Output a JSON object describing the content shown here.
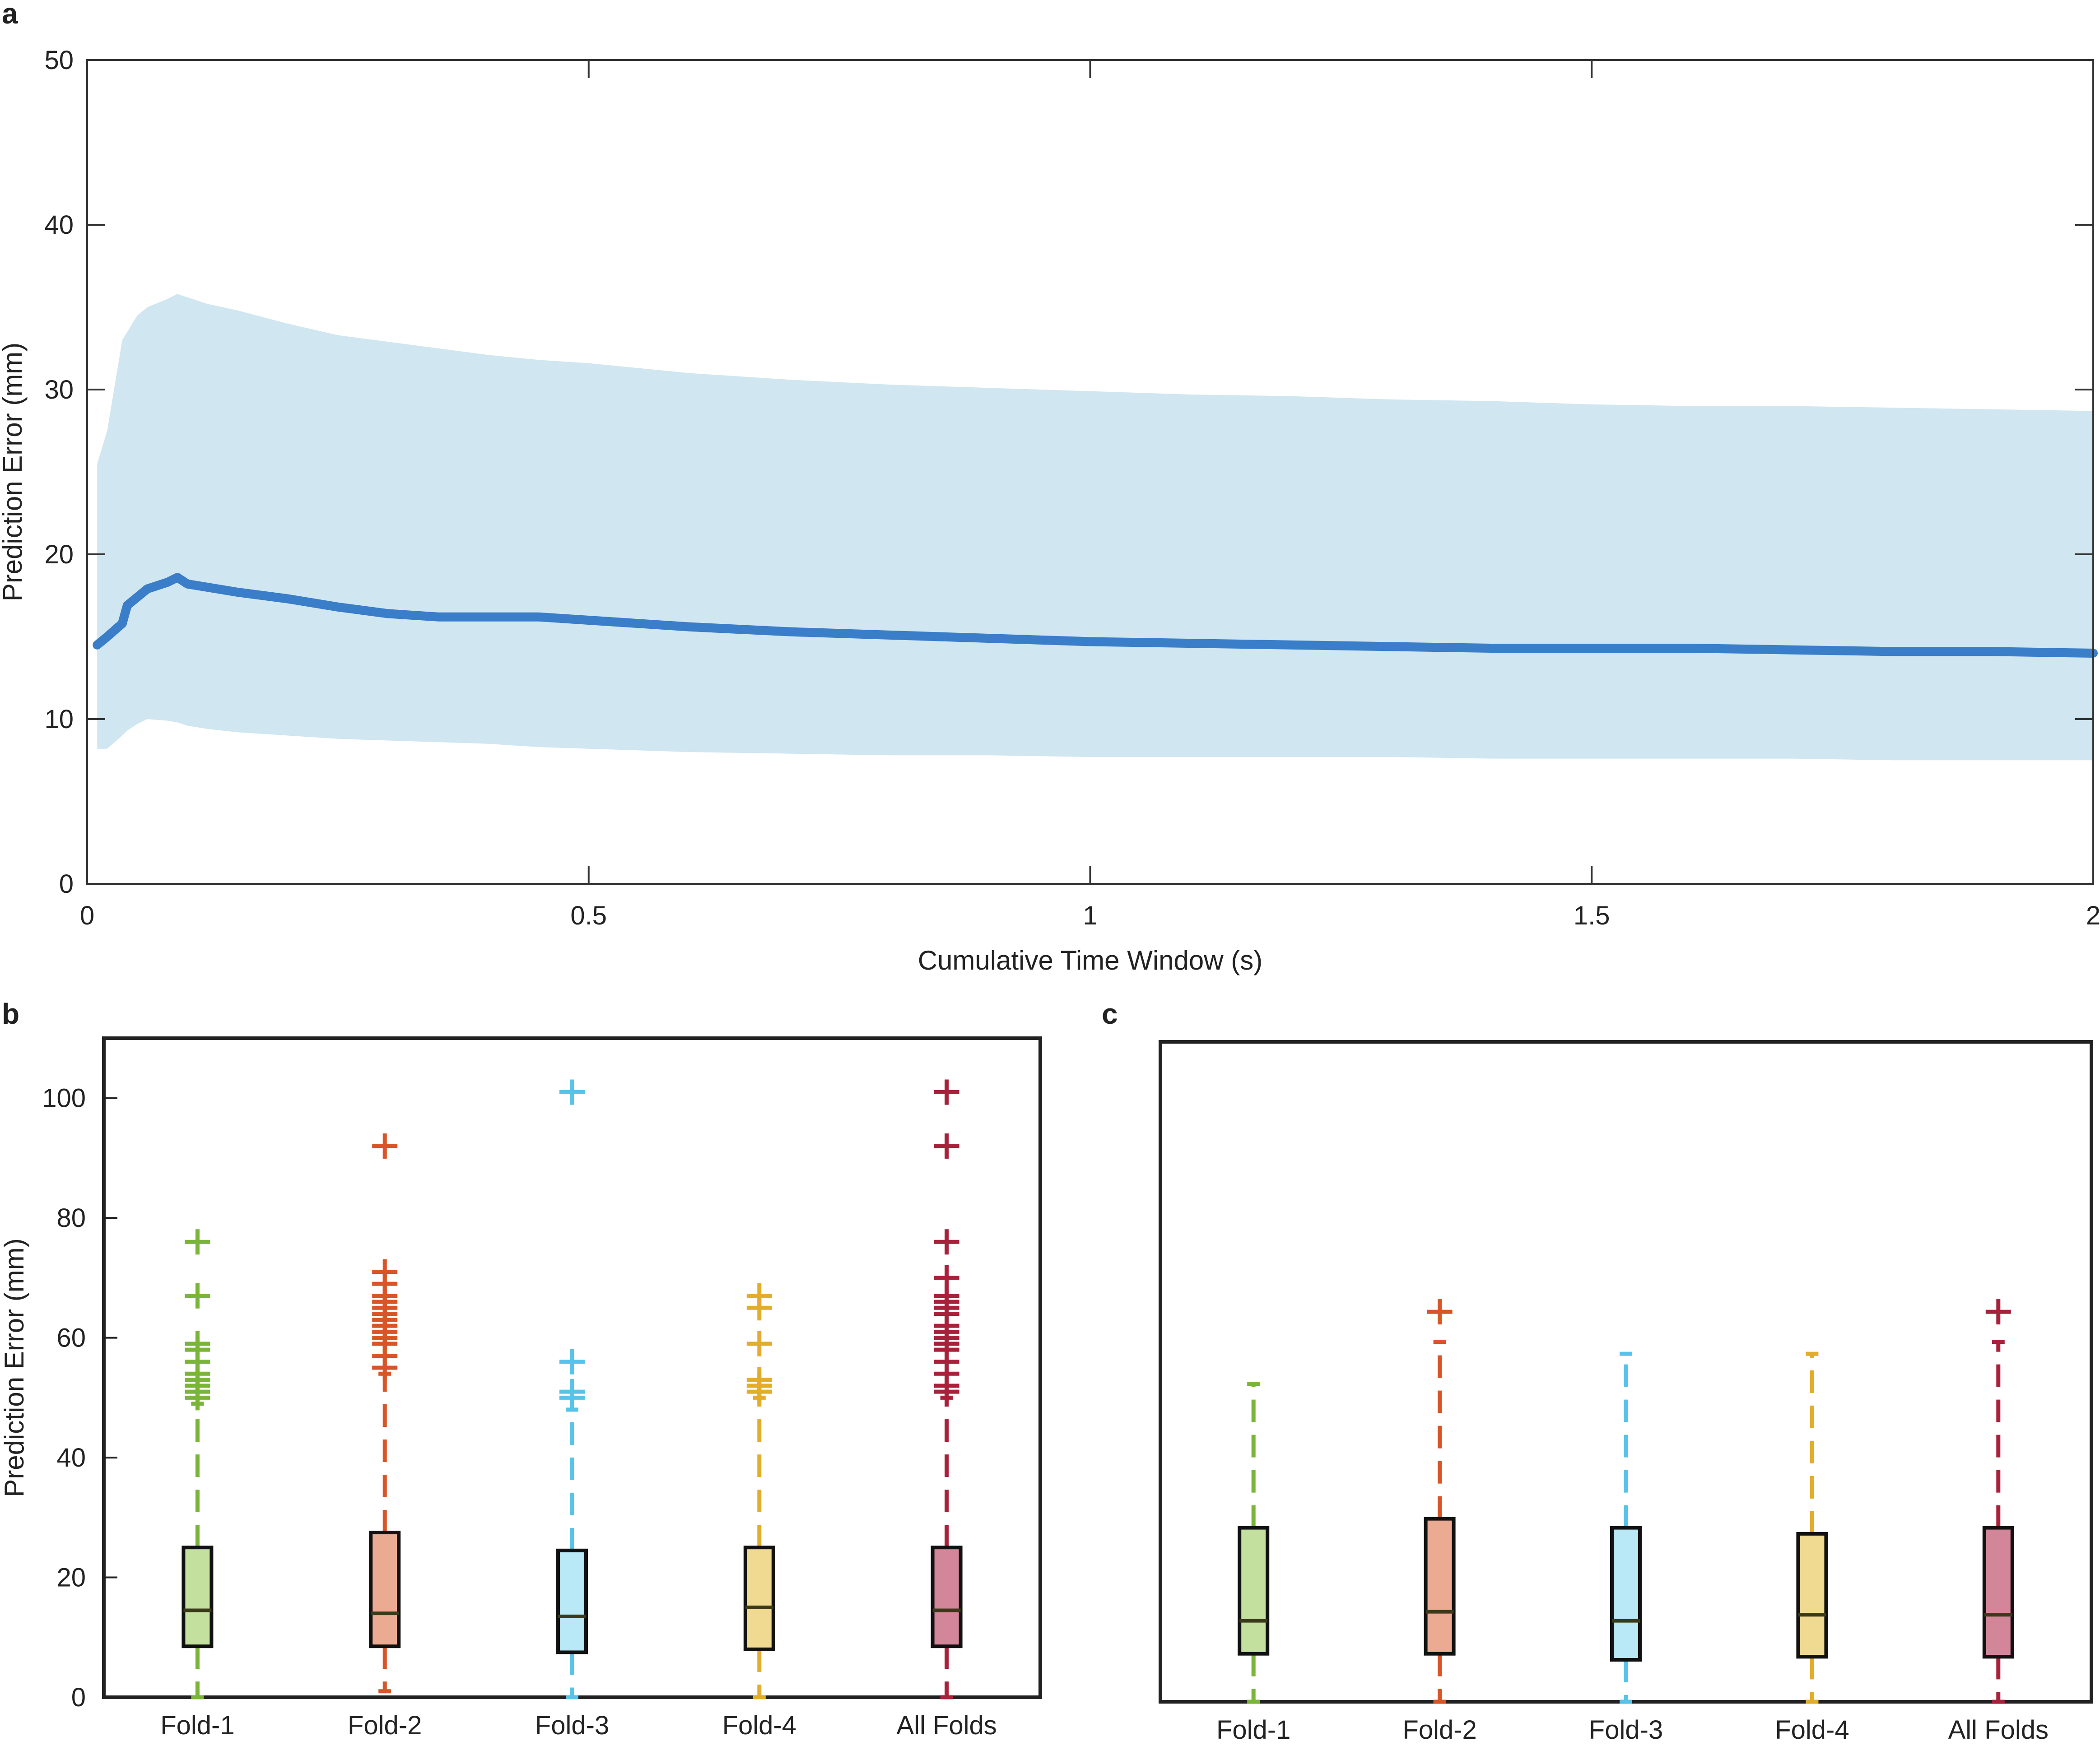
{
  "chart_data": [
    {
      "panel": "a",
      "type": "area",
      "xlabel": "Cumulative Time Window (s)",
      "ylabel": "Prediction Error (mm)",
      "xlim": [
        0,
        2
      ],
      "ylim": [
        0,
        50
      ],
      "xticks": [
        "0",
        "0.5",
        "1",
        "1.5",
        "2"
      ],
      "yticks": [
        "0",
        "10",
        "20",
        "30",
        "40",
        "50"
      ],
      "colors": {
        "line": "#3a7dc9",
        "band": "#d0e6f1"
      },
      "x": [
        0.01,
        0.02,
        0.035,
        0.04,
        0.05,
        0.06,
        0.08,
        0.09,
        0.1,
        0.12,
        0.15,
        0.2,
        0.25,
        0.3,
        0.35,
        0.4,
        0.45,
        0.5,
        0.55,
        0.6,
        0.7,
        0.8,
        0.9,
        1.0,
        1.1,
        1.2,
        1.3,
        1.4,
        1.5,
        1.6,
        1.7,
        1.8,
        1.9,
        2.0
      ],
      "mean": [
        14.5,
        15.0,
        15.8,
        16.9,
        17.4,
        17.9,
        18.3,
        18.6,
        18.2,
        18.0,
        17.7,
        17.3,
        16.8,
        16.4,
        16.2,
        16.2,
        16.2,
        16.0,
        15.8,
        15.6,
        15.3,
        15.1,
        14.9,
        14.7,
        14.6,
        14.5,
        14.4,
        14.3,
        14.3,
        14.3,
        14.2,
        14.1,
        14.1,
        14.0
      ],
      "upper": [
        25.5,
        27.5,
        33.0,
        33.5,
        34.5,
        35.0,
        35.5,
        35.8,
        35.6,
        35.2,
        34.8,
        34.0,
        33.3,
        32.9,
        32.5,
        32.1,
        31.8,
        31.6,
        31.3,
        31.0,
        30.6,
        30.3,
        30.1,
        29.9,
        29.7,
        29.6,
        29.4,
        29.3,
        29.1,
        29.0,
        29.0,
        28.9,
        28.8,
        28.7
      ],
      "lower": [
        8.2,
        8.2,
        9.0,
        9.3,
        9.7,
        10.0,
        9.9,
        9.8,
        9.6,
        9.4,
        9.2,
        9.0,
        8.8,
        8.7,
        8.6,
        8.5,
        8.3,
        8.2,
        8.1,
        8.0,
        7.9,
        7.8,
        7.8,
        7.7,
        7.7,
        7.7,
        7.7,
        7.6,
        7.6,
        7.6,
        7.6,
        7.5,
        7.5,
        7.5
      ]
    },
    {
      "panel": "b",
      "type": "box",
      "ylabel": "Prediction Error (mm)",
      "ylim": [
        0,
        110
      ],
      "yticks": [
        "0",
        "20",
        "40",
        "60",
        "80",
        "100"
      ],
      "categories": [
        "Fold-1",
        "Fold-2",
        "Fold-3",
        "Fold-4",
        "All Folds"
      ],
      "boxes": [
        {
          "q1": 8.5,
          "median": 14.5,
          "q3": 25,
          "whisker_low": 0,
          "whisker_high": 49,
          "outliers": [
            50,
            51,
            52,
            53,
            54,
            56,
            58,
            59,
            67,
            76
          ],
          "color": "#7ab539",
          "fill": "#c4e09f"
        },
        {
          "q1": 8.5,
          "median": 14.0,
          "q3": 27.5,
          "whisker_low": 1,
          "whisker_high": 54,
          "outliers": [
            55,
            57,
            59,
            60,
            61,
            62,
            63,
            64,
            65,
            66,
            67,
            69,
            71,
            92
          ],
          "color": "#d95426",
          "fill": "#ebaa92"
        },
        {
          "q1": 7.5,
          "median": 13.5,
          "q3": 24.5,
          "whisker_low": 0,
          "whisker_high": 48,
          "outliers": [
            50,
            51,
            56,
            101
          ],
          "color": "#57c3e8",
          "fill": "#b9e8f6"
        },
        {
          "q1": 8.0,
          "median": 15.0,
          "q3": 25,
          "whisker_low": 0,
          "whisker_high": 50,
          "outliers": [
            51,
            52,
            53,
            59,
            65,
            67
          ],
          "color": "#e3ad2c",
          "fill": "#f0d990"
        },
        {
          "q1": 8.5,
          "median": 14.5,
          "q3": 25,
          "whisker_low": 0,
          "whisker_high": 50,
          "outliers": [
            51,
            52,
            54,
            56,
            58,
            59,
            60,
            61,
            62,
            64,
            65,
            66,
            67,
            70,
            76,
            92,
            101
          ],
          "color": "#a8213b",
          "fill": "#d3869a"
        }
      ]
    },
    {
      "panel": "c",
      "type": "box",
      "ylim": [
        0,
        110
      ],
      "categories": [
        "Fold-1",
        "Fold-2",
        "Fold-3",
        "Fold-4",
        "All Folds"
      ],
      "boxes": [
        {
          "q1": 8.0,
          "median": 13.5,
          "q3": 29,
          "whisker_low": 0,
          "whisker_high": 53,
          "outliers": [],
          "color": "#7ab539",
          "fill": "#c4e09f"
        },
        {
          "q1": 8.0,
          "median": 15.0,
          "q3": 30.5,
          "whisker_low": 0,
          "whisker_high": 60,
          "outliers": [
            65
          ],
          "color": "#d95426",
          "fill": "#ebaa92"
        },
        {
          "q1": 7.0,
          "median": 13.5,
          "q3": 29,
          "whisker_low": 0,
          "whisker_high": 58,
          "outliers": [],
          "color": "#57c3e8",
          "fill": "#b9e8f6"
        },
        {
          "q1": 7.5,
          "median": 14.5,
          "q3": 28,
          "whisker_low": 0,
          "whisker_high": 58,
          "outliers": [],
          "color": "#e3ad2c",
          "fill": "#f0d990"
        },
        {
          "q1": 7.5,
          "median": 14.5,
          "q3": 29,
          "whisker_low": 0,
          "whisker_high": 60,
          "outliers": [
            65
          ],
          "color": "#a8213b",
          "fill": "#d3869a"
        }
      ]
    }
  ]
}
